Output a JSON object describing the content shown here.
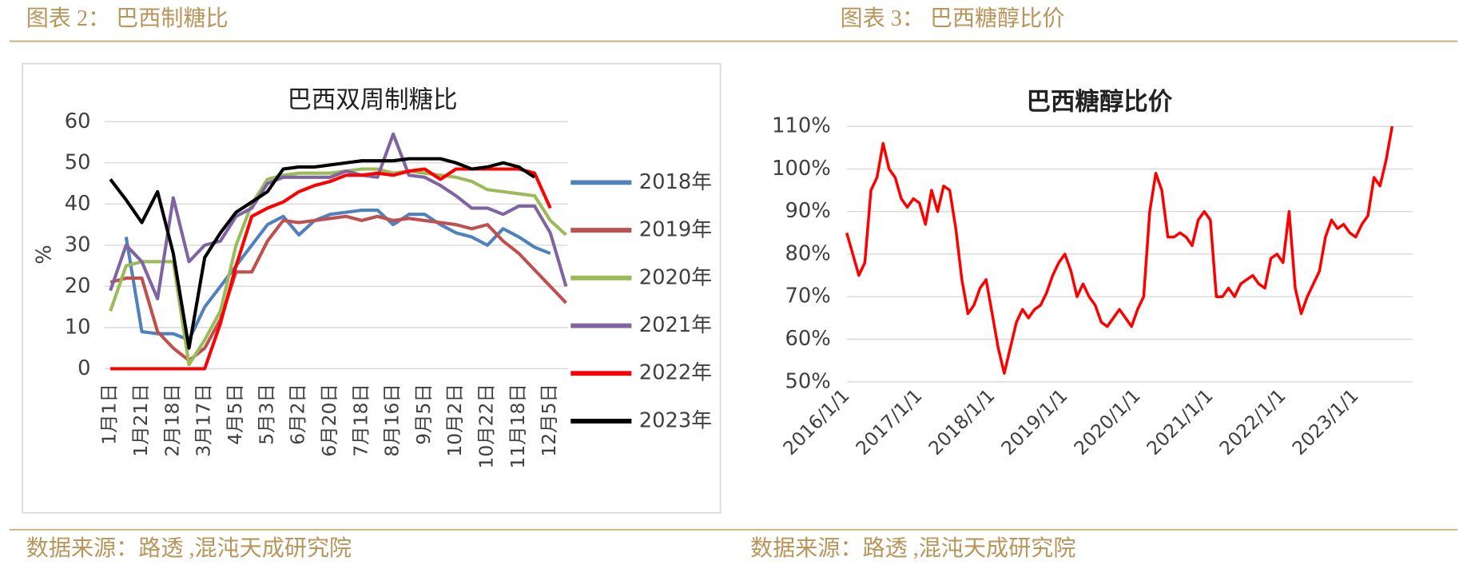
{
  "header": {
    "left": "图表 2：  巴西制糖比",
    "right": "图表 3：  巴西糖醇比价"
  },
  "footer": {
    "left": "数据来源：路透 ,混沌天成研究院",
    "right": "数据来源：路透 ,混沌天成研究院"
  },
  "chart_data": [
    {
      "type": "line",
      "title": "巴西双周制糖比",
      "y_label": "%",
      "categories": [
        "1月1日",
        null,
        "1月21日",
        null,
        "2月18日",
        null,
        "3月17日",
        null,
        "4月5日",
        null,
        "5月3日",
        null,
        "6月2日",
        null,
        "6月20日",
        null,
        "7月18日",
        null,
        "8月16日",
        null,
        "9月5日",
        null,
        "10月2日",
        null,
        "10月22日",
        null,
        "11月18日",
        null,
        "12月5日",
        null
      ],
      "series": [
        {
          "name": "2018年",
          "color": "#4f81bd",
          "values": [
            null,
            32,
            9,
            8.5,
            8.5,
            7,
            15,
            20,
            25,
            30,
            35,
            37,
            32.5,
            36,
            37.5,
            38,
            38.5,
            38.5,
            35,
            37.5,
            37.5,
            35,
            33,
            32,
            30,
            34,
            32,
            29.5,
            28,
            null
          ]
        },
        {
          "name": "2019年",
          "color": "#c0504d",
          "values": [
            21,
            22,
            22,
            9,
            5,
            2,
            5,
            12,
            23.5,
            23.5,
            31,
            36,
            35.5,
            36,
            36.5,
            37,
            36,
            37,
            36,
            36.5,
            36,
            35.5,
            35,
            34,
            35,
            31,
            28,
            24,
            20,
            16
          ]
        },
        {
          "name": "2020年",
          "color": "#9bbb59",
          "values": [
            14,
            25,
            26,
            26,
            26,
            1,
            7,
            14,
            30,
            40,
            46,
            47,
            47.5,
            47.5,
            47.5,
            48,
            48.5,
            48.5,
            47.5,
            48,
            47.5,
            47,
            46.5,
            45.5,
            43.5,
            43,
            42.5,
            42,
            36,
            32.5
          ]
        },
        {
          "name": "2021年",
          "color": "#8064a2",
          "values": [
            19,
            30,
            26,
            17,
            41.5,
            26,
            30,
            31,
            37,
            39,
            45,
            46.5,
            46.5,
            46.5,
            46.5,
            48,
            47,
            46.5,
            57,
            47,
            46.5,
            44.5,
            42,
            39,
            39,
            37.5,
            39.5,
            39.5,
            33,
            20
          ]
        },
        {
          "name": "2022年",
          "color": "#ff0000",
          "values": [
            0,
            0,
            0,
            0,
            0,
            0,
            0,
            11,
            25,
            37,
            39,
            40.5,
            43,
            44.5,
            45.5,
            47,
            47,
            47.5,
            47,
            48,
            48.5,
            46,
            48.5,
            48.5,
            48.5,
            48.5,
            48.5,
            47.5,
            39,
            null
          ]
        },
        {
          "name": "2023年",
          "color": "#000000",
          "values": [
            46,
            41,
            35.5,
            43,
            28,
            5,
            27,
            33,
            38,
            40.5,
            43,
            48.5,
            49,
            49,
            49.5,
            50,
            50.5,
            50.5,
            50.5,
            51,
            51,
            51,
            50,
            48.5,
            49,
            50,
            49,
            46.5,
            null,
            null
          ]
        }
      ],
      "ylim": [
        0,
        60
      ],
      "yticks": [
        0,
        10,
        20,
        30,
        40,
        50,
        60
      ],
      "grid": true,
      "legend": "right"
    },
    {
      "type": "line",
      "title": "巴西糖醇比价",
      "color": "#ff0000",
      "categories": [
        "2016/1/1",
        null,
        null,
        null,
        null,
        null,
        null,
        null,
        null,
        null,
        null,
        null,
        "2017/1/1",
        null,
        null,
        null,
        null,
        null,
        null,
        null,
        null,
        null,
        null,
        null,
        "2018/1/1",
        null,
        null,
        null,
        null,
        null,
        null,
        null,
        null,
        null,
        null,
        null,
        "2019/1/1",
        null,
        null,
        null,
        null,
        null,
        null,
        null,
        null,
        null,
        null,
        null,
        "2020/1/1",
        null,
        null,
        null,
        null,
        null,
        null,
        null,
        null,
        null,
        null,
        null,
        "2021/1/1",
        null,
        null,
        null,
        null,
        null,
        null,
        null,
        null,
        null,
        null,
        null,
        "2022/1/1",
        null,
        null,
        null,
        null,
        null,
        null,
        null,
        null,
        null,
        null,
        null,
        "2023/1/1",
        null,
        null,
        null,
        null,
        null,
        null
      ],
      "values": [
        85,
        80,
        75,
        78,
        95,
        98,
        106,
        100,
        98,
        93,
        91,
        93,
        92,
        87,
        95,
        90,
        96,
        95,
        86,
        74,
        66,
        68,
        72,
        74,
        66,
        58,
        52,
        58,
        64,
        67,
        65,
        67,
        68,
        71,
        75,
        78,
        80,
        76,
        70,
        73,
        70,
        68,
        64,
        63,
        65,
        67,
        65,
        63,
        67,
        70,
        90,
        99,
        95,
        84,
        84,
        85,
        84,
        82,
        88,
        90,
        88,
        70,
        70,
        72,
        70,
        73,
        74,
        75,
        73,
        72,
        79,
        80,
        78,
        90,
        72,
        66,
        70,
        73,
        76,
        84,
        88,
        86,
        87,
        85,
        84,
        87,
        89,
        98,
        96,
        102,
        110
      ],
      "ylim": [
        50,
        110
      ],
      "yticks": [
        {
          "value": 50,
          "label": "50%"
        },
        {
          "value": 60,
          "label": "60%"
        },
        {
          "value": 70,
          "label": "70%"
        },
        {
          "value": 80,
          "label": "80%"
        },
        {
          "value": 90,
          "label": "90%"
        },
        {
          "value": 100,
          "label": "100%"
        },
        {
          "value": 110,
          "label": "110%"
        }
      ],
      "grid": true
    }
  ]
}
